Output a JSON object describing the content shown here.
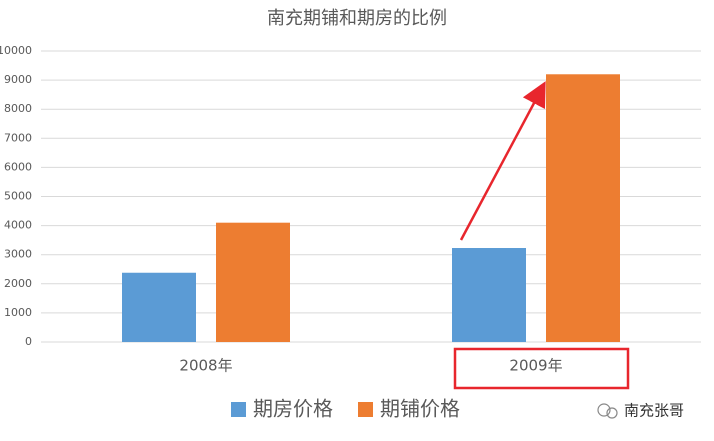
{
  "chart_data": {
    "type": "bar",
    "title": "南充期铺和期房的比例",
    "categories": [
      "2008年",
      "2009年"
    ],
    "series": [
      {
        "name": "期房价格",
        "color": "#5b9bd5",
        "values": [
          2380,
          3230
        ]
      },
      {
        "name": "期铺价格",
        "color": "#ed7d31",
        "values": [
          4100,
          9200
        ]
      }
    ],
    "ylim": [
      0,
      10000
    ],
    "yticks": [
      0,
      1000,
      2000,
      3000,
      4000,
      5000,
      6000,
      7000,
      8000,
      9000,
      10000
    ],
    "grid": true,
    "legend": "bottom"
  },
  "watermark": "南充张哥"
}
